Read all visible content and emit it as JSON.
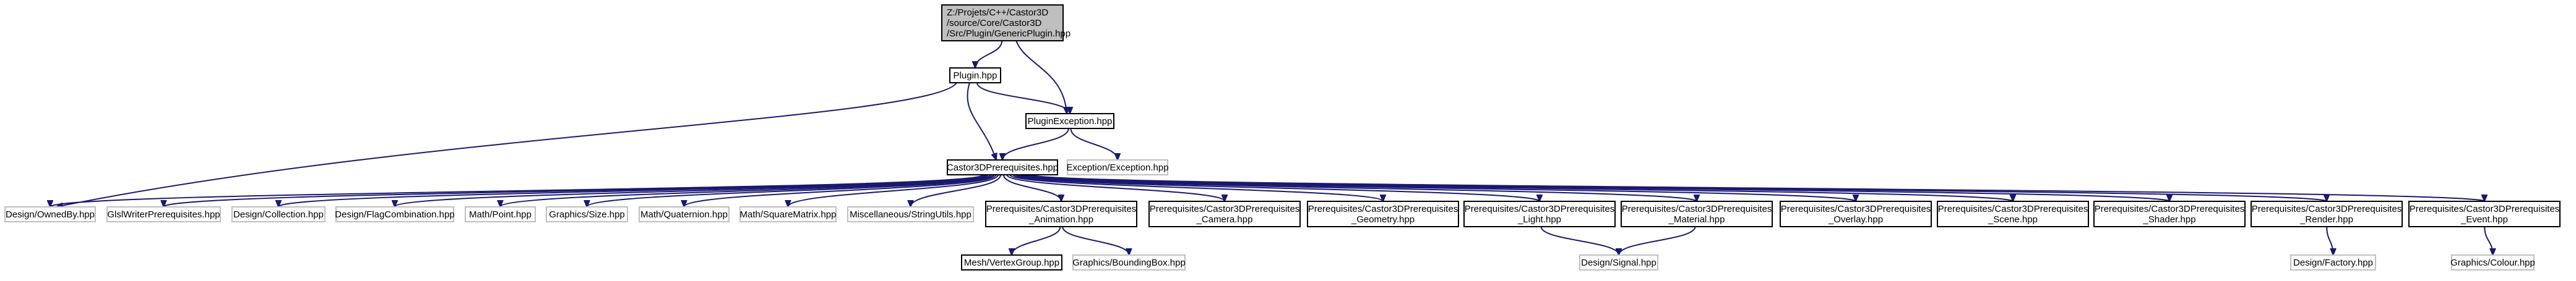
{
  "colors": {
    "background": "#ffffff",
    "root_fill": "#bfbfbf",
    "node_fill": "#ffffff",
    "node_border": "#000000",
    "external_border": "#bfbfbf",
    "edge": "#191970"
  },
  "graph": {
    "nodes": [
      {
        "id": "root",
        "lines": [
          "Z:/Projets/C++/Castor3D",
          "/source/Core/Castor3D",
          "/Src/Plugin/GenericPlugin.hpp"
        ],
        "kind": "root"
      },
      {
        "id": "plugin",
        "lines": [
          "Plugin.hpp"
        ],
        "kind": "file"
      },
      {
        "id": "pluginexc",
        "lines": [
          "PluginException.hpp"
        ],
        "kind": "file"
      },
      {
        "id": "exception",
        "lines": [
          "Exception/Exception.hpp"
        ],
        "kind": "external"
      },
      {
        "id": "prereq",
        "lines": [
          "Castor3DPrerequisites.hpp"
        ],
        "kind": "file"
      },
      {
        "id": "ownedby",
        "lines": [
          "Design/OwnedBy.hpp"
        ],
        "kind": "external"
      },
      {
        "id": "glsl",
        "lines": [
          "GlslWriterPrerequisites.hpp"
        ],
        "kind": "external"
      },
      {
        "id": "collection",
        "lines": [
          "Design/Collection.hpp"
        ],
        "kind": "external"
      },
      {
        "id": "flagcomb",
        "lines": [
          "Design/FlagCombination.hpp"
        ],
        "kind": "external"
      },
      {
        "id": "point",
        "lines": [
          "Math/Point.hpp"
        ],
        "kind": "external"
      },
      {
        "id": "size",
        "lines": [
          "Graphics/Size.hpp"
        ],
        "kind": "external"
      },
      {
        "id": "quaternion",
        "lines": [
          "Math/Quaternion.hpp"
        ],
        "kind": "external"
      },
      {
        "id": "squarematrix",
        "lines": [
          "Math/SquareMatrix.hpp"
        ],
        "kind": "external"
      },
      {
        "id": "stringutils",
        "lines": [
          "Miscellaneous/StringUtils.hpp"
        ],
        "kind": "external"
      },
      {
        "id": "animation",
        "lines": [
          "Prerequisites/Castor3DPrerequisites",
          "_Animation.hpp"
        ],
        "kind": "file"
      },
      {
        "id": "camera",
        "lines": [
          "Prerequisites/Castor3DPrerequisites",
          "_Camera.hpp"
        ],
        "kind": "file"
      },
      {
        "id": "geometry",
        "lines": [
          "Prerequisites/Castor3DPrerequisites",
          "_Geometry.hpp"
        ],
        "kind": "file"
      },
      {
        "id": "light",
        "lines": [
          "Prerequisites/Castor3DPrerequisites",
          "_Light.hpp"
        ],
        "kind": "file"
      },
      {
        "id": "material",
        "lines": [
          "Prerequisites/Castor3DPrerequisites",
          "_Material.hpp"
        ],
        "kind": "file"
      },
      {
        "id": "overlay",
        "lines": [
          "Prerequisites/Castor3DPrerequisites",
          "_Overlay.hpp"
        ],
        "kind": "file"
      },
      {
        "id": "scene",
        "lines": [
          "Prerequisites/Castor3DPrerequisites",
          "_Scene.hpp"
        ],
        "kind": "file"
      },
      {
        "id": "shader",
        "lines": [
          "Prerequisites/Castor3DPrerequisites",
          "_Shader.hpp"
        ],
        "kind": "file"
      },
      {
        "id": "render",
        "lines": [
          "Prerequisites/Castor3DPrerequisites",
          "_Render.hpp"
        ],
        "kind": "file"
      },
      {
        "id": "event",
        "lines": [
          "Prerequisites/Castor3DPrerequisites",
          "_Event.hpp"
        ],
        "kind": "file"
      },
      {
        "id": "vertexgroup",
        "lines": [
          "Mesh/VertexGroup.hpp"
        ],
        "kind": "file"
      },
      {
        "id": "boundingbox",
        "lines": [
          "Graphics/BoundingBox.hpp"
        ],
        "kind": "external"
      },
      {
        "id": "signal",
        "lines": [
          "Design/Signal.hpp"
        ],
        "kind": "external"
      },
      {
        "id": "factory",
        "lines": [
          "Design/Factory.hpp"
        ],
        "kind": "external"
      },
      {
        "id": "colour",
        "lines": [
          "Graphics/Colour.hpp"
        ],
        "kind": "external"
      }
    ],
    "edges": [
      [
        "root",
        "plugin"
      ],
      [
        "root",
        "pluginexc"
      ],
      [
        "plugin",
        "pluginexc"
      ],
      [
        "plugin",
        "prereq"
      ],
      [
        "plugin",
        "ownedby"
      ],
      [
        "pluginexc",
        "exception"
      ],
      [
        "pluginexc",
        "prereq"
      ],
      [
        "prereq",
        "ownedby"
      ],
      [
        "prereq",
        "glsl"
      ],
      [
        "prereq",
        "collection"
      ],
      [
        "prereq",
        "flagcomb"
      ],
      [
        "prereq",
        "point"
      ],
      [
        "prereq",
        "size"
      ],
      [
        "prereq",
        "quaternion"
      ],
      [
        "prereq",
        "squarematrix"
      ],
      [
        "prereq",
        "stringutils"
      ],
      [
        "prereq",
        "animation"
      ],
      [
        "prereq",
        "camera"
      ],
      [
        "prereq",
        "geometry"
      ],
      [
        "prereq",
        "light"
      ],
      [
        "prereq",
        "material"
      ],
      [
        "prereq",
        "overlay"
      ],
      [
        "prereq",
        "scene"
      ],
      [
        "prereq",
        "shader"
      ],
      [
        "prereq",
        "render"
      ],
      [
        "prereq",
        "event"
      ],
      [
        "animation",
        "vertexgroup"
      ],
      [
        "animation",
        "boundingbox"
      ],
      [
        "light",
        "signal"
      ],
      [
        "material",
        "signal"
      ],
      [
        "render",
        "factory"
      ],
      [
        "event",
        "colour"
      ]
    ]
  }
}
